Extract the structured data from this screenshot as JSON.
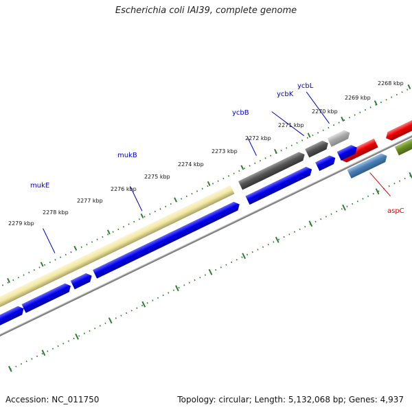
{
  "header": {
    "title": "Escherichia coli IAI39, complete genome"
  },
  "footer": {
    "accession": "Accession: NC_011750",
    "summary": "Topology: circular; Length: 5,132,068 bp; Genes: 4,937"
  },
  "scale": {
    "ticks": [
      {
        "label": "2268 kbp"
      },
      {
        "label": "2269 kbp"
      },
      {
        "label": "2270 kbp"
      },
      {
        "label": "2271 kbp"
      },
      {
        "label": "2272 kbp"
      },
      {
        "label": "2273 kbp"
      },
      {
        "label": "2274 kbp"
      },
      {
        "label": "2275 kbp"
      },
      {
        "label": "2276 kbp"
      },
      {
        "label": "2277 kbp"
      },
      {
        "label": "2278 kbp"
      },
      {
        "label": "2279 kbp"
      }
    ]
  },
  "genes": [
    {
      "name": "mukE",
      "color": "#0000cc"
    },
    {
      "name": "mukB",
      "color": "#0000cc"
    },
    {
      "name": "ycbB",
      "color": "#0000cc"
    },
    {
      "name": "ycbK",
      "color": "#0000cc"
    },
    {
      "name": "ycbL",
      "color": "#0000cc"
    },
    {
      "name": "aspC",
      "color": "#dd0000"
    }
  ],
  "colors": {
    "cds": "#0000ee",
    "dark_gray": "#555555",
    "light_gray": "#aaaaaa",
    "khaki": "#f2e8a0",
    "red": "#ee0000",
    "steel_blue": "#4a7fb5",
    "olive": "#6b8e23",
    "tick_green": "#2e7d32",
    "backbone": "#808080"
  }
}
